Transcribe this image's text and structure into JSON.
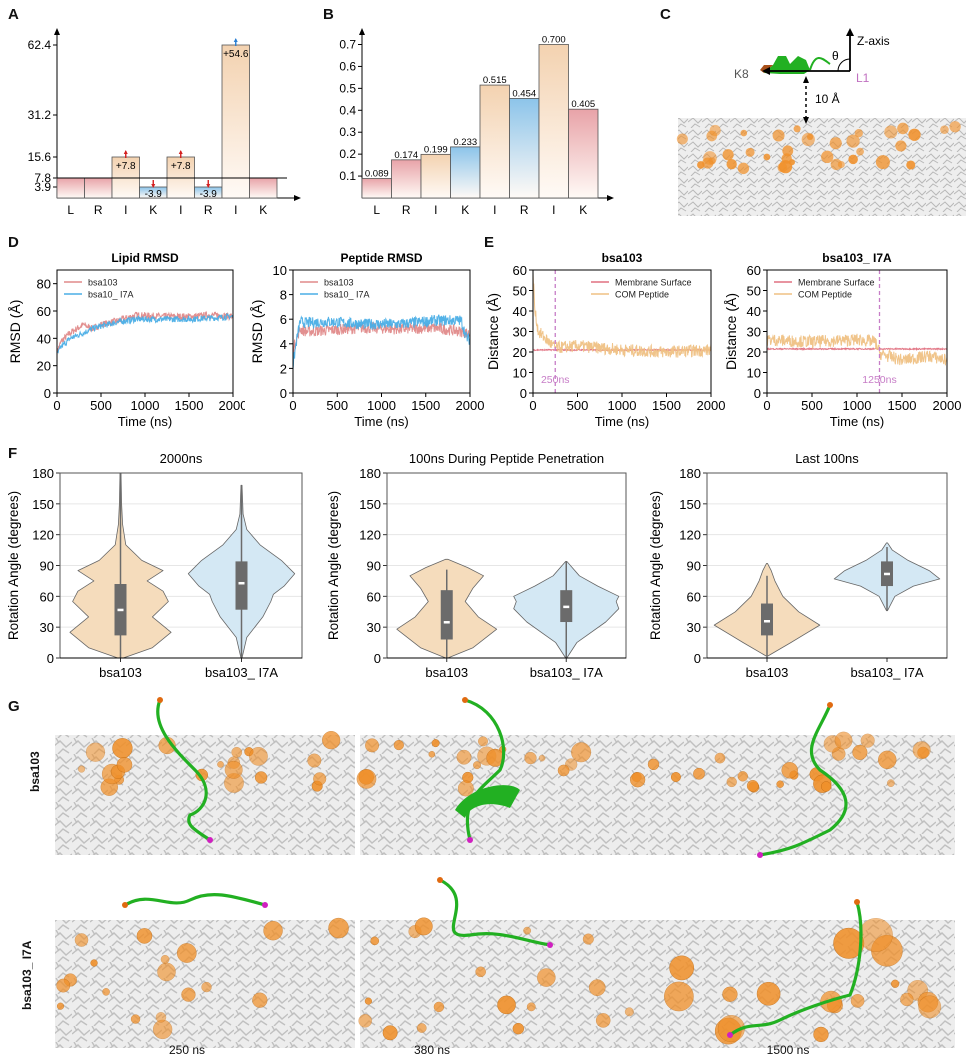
{
  "panels": {
    "A": {
      "letter": "A"
    },
    "B": {
      "letter": "B"
    },
    "C": {
      "letter": "C",
      "labels": {
        "k8": "K8",
        "l1": "L1",
        "z_axis": "Z-axis",
        "theta": "θ",
        "distance": "10 Å"
      }
    },
    "D": {
      "letter": "D"
    },
    "E": {
      "letter": "E"
    },
    "F": {
      "letter": "F"
    },
    "G": {
      "letter": "G",
      "row_labels": [
        "bsa103",
        "bsa103_ I7A"
      ],
      "time_labels": [
        "250 ns",
        "380 ns",
        "1500 ns"
      ]
    }
  },
  "colors": {
    "red_fill": "#e8a3a8",
    "orange_fill": "#f3d2b0",
    "blue_fill": "#8cc4ea",
    "bsa103_line": "#e08a8a",
    "i7a_line": "#4aaee6",
    "membrane_line": "#e07080",
    "com_line": "#efc184",
    "marker_line": "#c77dc7",
    "violin_orange": "#f5dcbc",
    "violin_blue": "#d4e8f4",
    "box": "#6b6b6b",
    "lipid_orange": "#f0902a",
    "peptide_green": "#22b022",
    "peptide_magenta": "#d020c0"
  },
  "chart_data": [
    {
      "id": "A",
      "type": "bar",
      "categories": [
        "L",
        "R",
        "I",
        "K",
        "I",
        "R",
        "I",
        "K"
      ],
      "values": [
        7.8,
        7.8,
        15.6,
        3.9,
        15.6,
        3.9,
        62.4,
        7.8
      ],
      "fill": [
        "red",
        "red",
        "orange",
        "blue",
        "orange",
        "blue",
        "orange",
        "red"
      ],
      "annotations": [
        "",
        "",
        "+7.8",
        "-3.9",
        "+7.8",
        "-3.9",
        "+54.6",
        ""
      ],
      "arrow_marks": [
        "",
        "",
        "up-red",
        "down-red",
        "up-red",
        "down-red",
        "up-blue",
        ""
      ],
      "yticks": [
        "3.9",
        "7.8",
        "15.6",
        "31.2",
        "62.4"
      ],
      "ytick_values": [
        3.9,
        7.8,
        15.6,
        31.2,
        62.4
      ],
      "baseline": 7.8,
      "ylim": [
        0,
        66
      ]
    },
    {
      "id": "B",
      "type": "bar",
      "categories": [
        "L",
        "R",
        "I",
        "K",
        "I",
        "R",
        "I",
        "K"
      ],
      "values": [
        0.089,
        0.174,
        0.199,
        0.233,
        0.515,
        0.454,
        0.7,
        0.405
      ],
      "labels": [
        "0.089",
        "0.174",
        "0.199",
        "0.233",
        "0.515",
        "0.454",
        "0.700",
        "0.405"
      ],
      "fill": [
        "red",
        "red",
        "orange",
        "blue",
        "orange",
        "blue",
        "orange",
        "red"
      ],
      "yticks": [
        "0.1",
        "0.2",
        "0.3",
        "0.4",
        "0.5",
        "0.6",
        "0.7"
      ],
      "ylim": [
        0,
        0.75
      ]
    },
    {
      "id": "D1",
      "type": "line",
      "title": "Lipid RMSD",
      "xlabel": "Time (ns)",
      "ylabel": "RMSD (Å)",
      "xlim": [
        0,
        2000
      ],
      "ylim": [
        0,
        90
      ],
      "xticks": [
        0,
        500,
        1000,
        1500,
        2000
      ],
      "yticks": [
        0,
        20,
        40,
        60,
        80
      ],
      "legend": "top-left",
      "series": [
        {
          "name": "bsa103",
          "color_key": "bsa103_line",
          "x": [
            0,
            50,
            150,
            300,
            400,
            500,
            700,
            900,
            1200,
            1500,
            1800,
            2000
          ],
          "y": [
            30,
            38,
            44,
            50,
            47,
            50,
            53,
            57,
            56,
            56,
            57,
            56
          ],
          "noise": 2.5
        },
        {
          "name": "bsa10_ I7A",
          "color_key": "i7a_line",
          "x": [
            0,
            50,
            150,
            300,
            400,
            500,
            700,
            900,
            1200,
            1500,
            1800,
            2000
          ],
          "y": [
            28,
            34,
            40,
            44,
            47,
            49,
            52,
            54,
            54,
            54,
            55,
            56
          ],
          "noise": 2.2
        }
      ]
    },
    {
      "id": "D2",
      "type": "line",
      "title": "Peptide RMSD",
      "xlabel": "Time (ns)",
      "ylabel": "RMSD (Å)",
      "xlim": [
        0,
        2000
      ],
      "ylim": [
        0,
        10
      ],
      "xticks": [
        0,
        500,
        1000,
        1500,
        2000
      ],
      "yticks": [
        0,
        2,
        4,
        6,
        8,
        10
      ],
      "legend": "top-left",
      "series": [
        {
          "name": "bsa103",
          "color_key": "bsa103_line",
          "x": [
            0,
            30,
            80,
            150,
            400,
            800,
            1200,
            1600,
            1900,
            2000
          ],
          "y": [
            3.5,
            4.2,
            5.2,
            5.0,
            5.1,
            5.3,
            5.2,
            5.3,
            5.0,
            4.8
          ],
          "noise": 0.45
        },
        {
          "name": "bsa10_ I7A",
          "color_key": "i7a_line",
          "x": [
            0,
            30,
            80,
            150,
            400,
            800,
            1200,
            1600,
            1900,
            1960,
            2000
          ],
          "y": [
            2.2,
            3.8,
            5.8,
            5.7,
            5.8,
            5.6,
            5.6,
            5.9,
            5.9,
            4.5,
            4.3
          ],
          "noise": 0.45
        }
      ]
    },
    {
      "id": "E1",
      "type": "line",
      "title": "bsa103",
      "xlabel": "Time (ns)",
      "ylabel": "Distance (Å)",
      "xlim": [
        0,
        2000
      ],
      "ylim": [
        0,
        60
      ],
      "xticks": [
        0,
        500,
        1000,
        1500,
        2000
      ],
      "yticks": [
        0,
        10,
        20,
        30,
        40,
        50,
        60
      ],
      "legend": "top-right",
      "vline": {
        "x": 250,
        "label": "250ns"
      },
      "series": [
        {
          "name": "Membrane Surface",
          "color_key": "membrane_line",
          "x": [
            0,
            2000
          ],
          "y": [
            21,
            21
          ],
          "noise": 0.3
        },
        {
          "name": "COM Peptide",
          "color_key": "com_line",
          "x": [
            0,
            20,
            60,
            150,
            250,
            500,
            1000,
            1500,
            2000
          ],
          "y": [
            60,
            40,
            30,
            26,
            22,
            23,
            21,
            20,
            21
          ],
          "noise": 3
        }
      ]
    },
    {
      "id": "E2",
      "type": "line",
      "title": "bsa103_ I7A",
      "xlabel": "Time (ns)",
      "ylabel": "Distance (Å)",
      "xlim": [
        0,
        2000
      ],
      "ylim": [
        0,
        60
      ],
      "xticks": [
        0,
        500,
        1000,
        1500,
        2000
      ],
      "yticks": [
        0,
        10,
        20,
        30,
        40,
        50,
        60
      ],
      "legend": "top-left",
      "vline": {
        "x": 1250,
        "label": "1250ns"
      },
      "series": [
        {
          "name": "Membrane Surface",
          "color_key": "membrane_line",
          "x": [
            0,
            2000
          ],
          "y": [
            21.5,
            21.5
          ],
          "noise": 0.3
        },
        {
          "name": "COM Peptide",
          "color_key": "com_line",
          "x": [
            0,
            500,
            1000,
            1200,
            1260,
            1500,
            1800,
            2000
          ],
          "y": [
            26,
            25,
            26,
            25,
            19,
            16,
            18,
            16
          ],
          "noise": 3
        }
      ]
    },
    {
      "id": "F1",
      "type": "violin",
      "title": "2000ns",
      "ylabel": "Rotation Angle (degrees)",
      "categories": [
        "bsa103",
        "bsa103_ I7A"
      ],
      "ylim": [
        0,
        180
      ],
      "yticks": [
        0,
        30,
        60,
        90,
        120,
        150,
        180
      ],
      "stats": [
        {
          "min": 0,
          "q1": 22,
          "median": 47,
          "q3": 72,
          "max": 180,
          "fill_key": "violin_orange",
          "profile": [
            [
              0,
              0.05
            ],
            [
              10,
              0.6
            ],
            [
              25,
              0.95
            ],
            [
              40,
              0.6
            ],
            [
              55,
              0.9
            ],
            [
              65,
              0.8
            ],
            [
              75,
              0.5
            ],
            [
              85,
              0.8
            ],
            [
              95,
              0.4
            ],
            [
              110,
              0.1
            ],
            [
              130,
              0.04
            ],
            [
              150,
              0.02
            ],
            [
              180,
              0.01
            ]
          ]
        },
        {
          "min": 0,
          "q1": 47,
          "median": 73,
          "q3": 94,
          "max": 168,
          "fill_key": "violin_blue",
          "profile": [
            [
              0,
              0.01
            ],
            [
              20,
              0.1
            ],
            [
              40,
              0.4
            ],
            [
              55,
              0.55
            ],
            [
              62,
              0.6
            ],
            [
              70,
              0.8
            ],
            [
              82,
              1.0
            ],
            [
              95,
              0.75
            ],
            [
              110,
              0.35
            ],
            [
              125,
              0.1
            ],
            [
              140,
              0.03
            ],
            [
              168,
              0.01
            ]
          ]
        }
      ]
    },
    {
      "id": "F2",
      "type": "violin",
      "title": "100ns During Peptide Penetration",
      "ylabel": "Rotation Angle (degrees)",
      "categories": [
        "bsa103",
        "bsa103_ I7A"
      ],
      "ylim": [
        0,
        180
      ],
      "yticks": [
        0,
        30,
        60,
        90,
        120,
        150,
        180
      ],
      "stats": [
        {
          "min": 0,
          "q1": 18,
          "median": 35,
          "q3": 66,
          "max": 86,
          "fill_key": "violin_orange",
          "profile": [
            [
              0,
              0.02
            ],
            [
              10,
              0.5
            ],
            [
              28,
              0.95
            ],
            [
              40,
              0.6
            ],
            [
              55,
              0.35
            ],
            [
              68,
              0.5
            ],
            [
              80,
              0.7
            ],
            [
              88,
              0.4
            ],
            [
              96,
              0.02
            ]
          ]
        },
        {
          "min": 0,
          "q1": 35,
          "median": 50,
          "q3": 66,
          "max": 94,
          "fill_key": "violin_blue",
          "profile": [
            [
              0,
              0.01
            ],
            [
              15,
              0.2
            ],
            [
              35,
              0.75
            ],
            [
              48,
              1.0
            ],
            [
              55,
              0.95
            ],
            [
              60,
              1.0
            ],
            [
              70,
              0.6
            ],
            [
              80,
              0.25
            ],
            [
              94,
              0.01
            ]
          ]
        }
      ]
    },
    {
      "id": "F3",
      "type": "violin",
      "title": "Last 100ns",
      "ylabel": "Rotation Angle (degrees)",
      "categories": [
        "bsa103",
        "bsa103_ I7A"
      ],
      "ylim": [
        0,
        180
      ],
      "yticks": [
        0,
        30,
        60,
        90,
        120,
        150,
        180
      ],
      "stats": [
        {
          "min": 0,
          "q1": 22,
          "median": 36,
          "q3": 53,
          "max": 80,
          "fill_key": "violin_orange",
          "profile": [
            [
              2,
              0.02
            ],
            [
              15,
              0.45
            ],
            [
              32,
              1.0
            ],
            [
              45,
              0.6
            ],
            [
              60,
              0.3
            ],
            [
              75,
              0.15
            ],
            [
              85,
              0.08
            ],
            [
              92,
              0.01
            ]
          ]
        },
        {
          "min": 46,
          "q1": 70,
          "median": 82,
          "q3": 94,
          "max": 108,
          "fill_key": "violin_blue",
          "profile": [
            [
              46,
              0.01
            ],
            [
              60,
              0.15
            ],
            [
              70,
              0.5
            ],
            [
              77,
              1.0
            ],
            [
              85,
              0.8
            ],
            [
              95,
              0.4
            ],
            [
              105,
              0.1
            ],
            [
              112,
              0.01
            ]
          ]
        }
      ]
    }
  ]
}
